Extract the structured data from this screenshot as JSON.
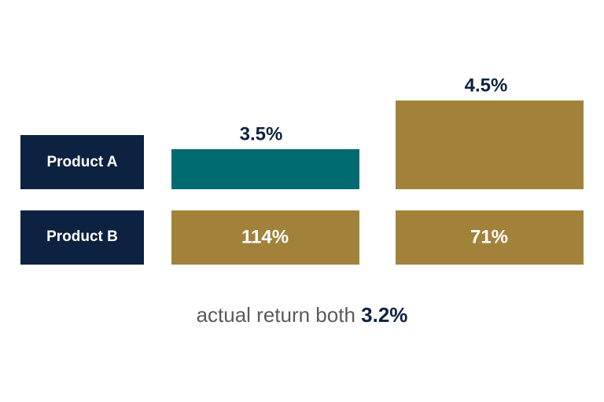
{
  "rows": [
    {
      "label": "Product A",
      "cells": [
        "3.5%",
        "4.5%"
      ]
    },
    {
      "label": "Product B",
      "cells": [
        "114%",
        "71%"
      ]
    }
  ],
  "footer": {
    "text": "actual return both",
    "highlight": "3.2%"
  }
}
